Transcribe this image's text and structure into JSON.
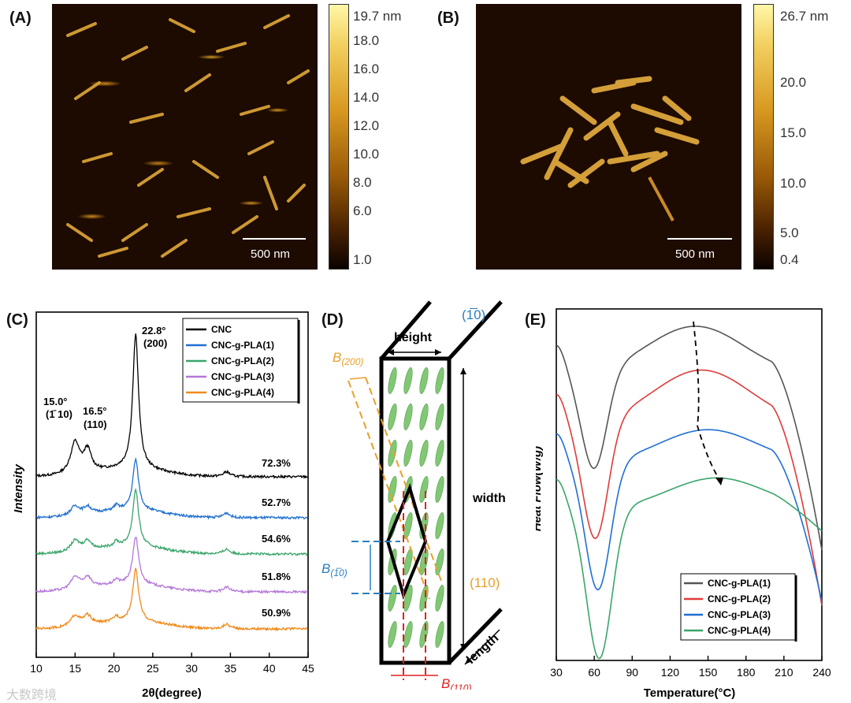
{
  "panel_a": {
    "label": "(A)",
    "scale_bar": "500 nm",
    "colorbar_labels": [
      "19.7 nm",
      "18.0",
      "16.0",
      "14.0",
      "12.0",
      "10.0",
      "8.0",
      "6.0",
      "1.0"
    ]
  },
  "panel_b": {
    "label": "(B)",
    "scale_bar": "500 nm",
    "colorbar_labels": [
      "26.7 nm",
      "20.0",
      "15.0",
      "10.0",
      "5.0",
      "0.4"
    ]
  },
  "panel_c": {
    "label": "(C)",
    "annotations": {
      "p228": "22.8°",
      "p228_hkl": "(200)",
      "p150": "15.0°",
      "p150_hkl": "(1̄ 10)",
      "p165": "16.5°",
      "p165_hkl": "(110)"
    }
  },
  "panel_d": {
    "label": "(D)",
    "height": "height",
    "width": "width",
    "length": "length",
    "plane_1m10": "(1̅0)",
    "plane_110": "(110)",
    "b200": "B",
    "b200_sub": "(200)",
    "b1m10": "B",
    "b1m10_sub": "(1̅0)",
    "b110": "B",
    "b110_sub": "(110)"
  },
  "panel_e": {
    "label": "(E)"
  },
  "chart_data": [
    {
      "type": "line",
      "title": "(C)",
      "xlabel": "2θ(degree)",
      "ylabel": "Intensity",
      "xlim": [
        10,
        45
      ],
      "xticks": [
        10,
        15,
        20,
        25,
        30,
        35,
        40,
        45
      ],
      "legend_position": "top-right",
      "series": [
        {
          "name": "CNC",
          "color": "#000000",
          "crystallinity": "72.3%"
        },
        {
          "name": "CNC-g-PLA(1)",
          "color": "#1f6fd1",
          "crystallinity": "52.7%"
        },
        {
          "name": "CNC-g-PLA(2)",
          "color": "#3aa56a",
          "crystallinity": "54.6%"
        },
        {
          "name": "CNC-g-PLA(3)",
          "color": "#b477d9",
          "crystallinity": "51.8%"
        },
        {
          "name": "CNC-g-PLA(4)",
          "color": "#f08a1a",
          "crystallinity": "50.9%"
        }
      ],
      "peaks_2theta": [
        15.0,
        16.5,
        22.8,
        34.5
      ]
    },
    {
      "type": "line",
      "title": "(E)",
      "xlabel": "Temperature(°C)",
      "ylabel": "Heat Flow(W/g)",
      "xlim": [
        30,
        240
      ],
      "xticks": [
        30,
        60,
        90,
        120,
        150,
        180,
        210,
        240
      ],
      "legend_position": "bottom-right",
      "series": [
        {
          "name": "CNC-g-PLA(1)",
          "color": "#555555",
          "min_temp": 60,
          "max_temp": 140
        },
        {
          "name": "CNC-g-PLA(2)",
          "color": "#e03a3a",
          "min_temp": 61,
          "max_temp": 145
        },
        {
          "name": "CNC-g-PLA(3)",
          "color": "#1f6fd1",
          "min_temp": 63,
          "max_temp": 150
        },
        {
          "name": "CNC-g-PLA(4)",
          "color": "#3aa56a",
          "min_temp": 64,
          "max_temp": 157
        }
      ]
    }
  ],
  "watermark": "大数跨境"
}
